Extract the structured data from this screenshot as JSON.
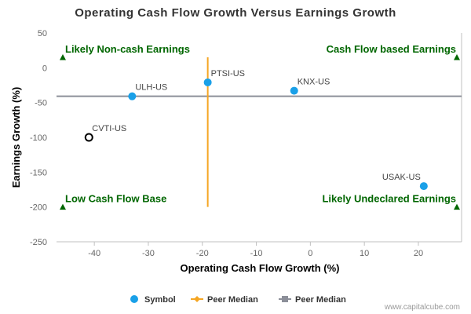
{
  "chart_data": {
    "type": "scatter",
    "title": "Operating Cash Flow Growth Versus Earnings Growth",
    "xlabel": "Operating Cash Flow Growth (%)",
    "ylabel": "Earnings Growth (%)",
    "xlim": [
      -47,
      28
    ],
    "ylim": [
      -250,
      50
    ],
    "xticks": [
      -40,
      -30,
      -20,
      -10,
      0,
      10,
      20
    ],
    "yticks": [
      50,
      0,
      -50,
      -100,
      -150,
      -200,
      -250
    ],
    "points": [
      {
        "label": "PTSI-US",
        "x": -19,
        "y": -21,
        "style": "filled"
      },
      {
        "label": "ULH-US",
        "x": -33,
        "y": -41,
        "style": "filled"
      },
      {
        "label": "KNX-US",
        "x": -3,
        "y": -33,
        "style": "filled"
      },
      {
        "label": "CVTI-US",
        "x": -41,
        "y": -100,
        "style": "hollow"
      },
      {
        "label": "USAK-US",
        "x": 21,
        "y": -170,
        "style": "filled"
      }
    ],
    "peer_median_x": -19,
    "peer_median_y": -41,
    "quadrant_labels": {
      "top_left": "Likely Non-cash Earnings",
      "top_right": "Cash Flow based Earnings",
      "bottom_left": "Low Cash Flow Base",
      "bottom_right": "Likely Undeclared Earnings"
    },
    "legend": [
      {
        "label": "Symbol",
        "marker": "circle",
        "color": "#1aa0e8"
      },
      {
        "label": "Peer Median",
        "marker": "diamond",
        "color": "#f5a623"
      },
      {
        "label": "Peer Median",
        "marker": "square",
        "color": "#8c8f99"
      }
    ],
    "colors": {
      "point": "#1aa0e8",
      "hollow_point": "#000000",
      "vertical_median": "#f5a623",
      "horizontal_median": "#8c8f99",
      "quadrant_text": "#006600",
      "quadrant_marker": "#006600"
    },
    "legend_placement": "bottom",
    "grid": false
  },
  "credit": "www.capitalcube.com"
}
